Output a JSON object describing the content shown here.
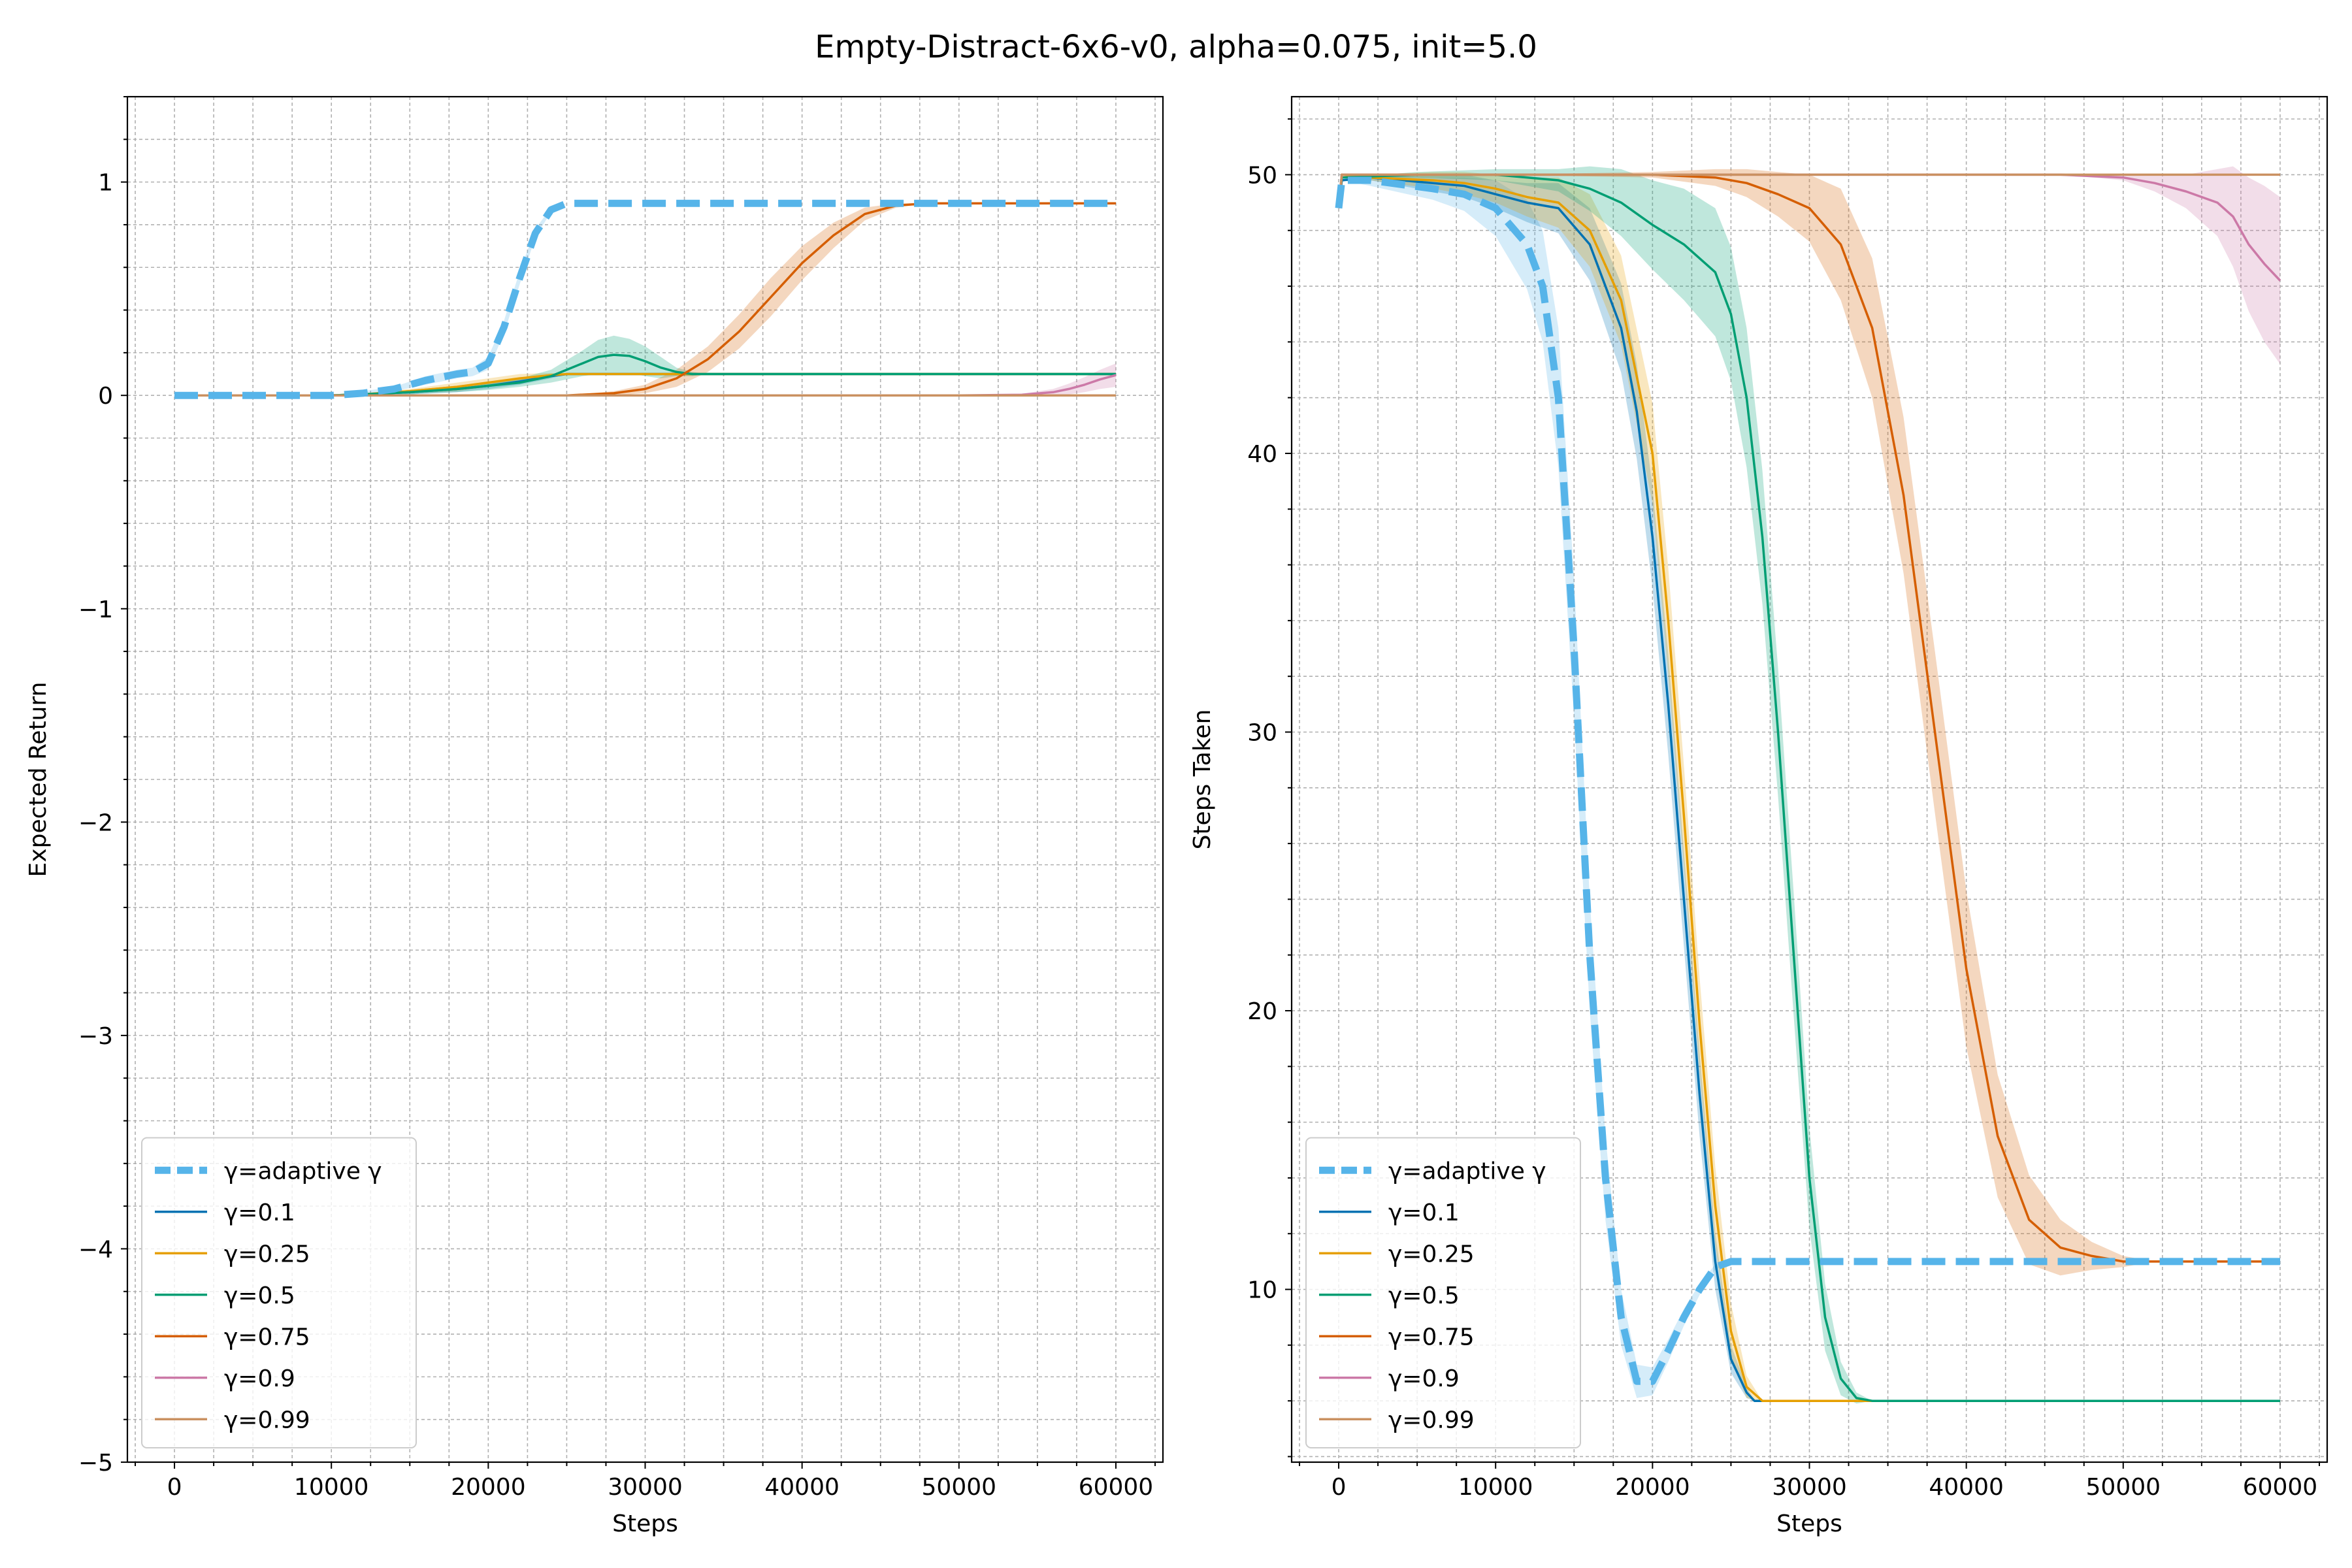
{
  "figure": {
    "title": "Empty-Distract-6x6-v0, alpha=0.075, init=5.0"
  },
  "chart_data": [
    {
      "type": "line",
      "xlabel": "Steps",
      "ylabel": "Expected Return",
      "xlim": [
        -3000,
        63000
      ],
      "ylim": [
        -5,
        1.4
      ],
      "xticks": [
        0,
        10000,
        20000,
        30000,
        40000,
        50000,
        60000
      ],
      "yticks": [
        -5,
        -4,
        -3,
        -2,
        -1,
        0,
        1
      ],
      "grid": true,
      "minor_grid": true,
      "legend_position": "lower-left",
      "series": [
        {
          "name": "γ=adaptive γ",
          "color": "#56B4E9",
          "dashed": true,
          "x": [
            0,
            10000,
            12000,
            14000,
            16000,
            18000,
            19000,
            20000,
            21000,
            22000,
            23000,
            24000,
            25000,
            26000,
            30000,
            40000,
            50000,
            60000
          ],
          "y": [
            0,
            0,
            0.01,
            0.03,
            0.07,
            0.1,
            0.11,
            0.15,
            0.32,
            0.55,
            0.76,
            0.87,
            0.9,
            0.9,
            0.9,
            0.9,
            0.9,
            0.9
          ],
          "band": [
            0,
            0,
            0.01,
            0.01,
            0.02,
            0.02,
            0.02,
            0.03,
            0.03,
            0.03,
            0.02,
            0.01,
            0,
            0,
            0,
            0,
            0,
            0
          ]
        },
        {
          "name": "γ=0.1",
          "color": "#0072B2",
          "x": [
            0,
            10000,
            12000,
            15000,
            18000,
            20000,
            22000,
            24000,
            25000,
            30000,
            40000,
            50000,
            60000
          ],
          "y": [
            0,
            0,
            0.005,
            0.015,
            0.03,
            0.045,
            0.065,
            0.09,
            0.1,
            0.1,
            0.1,
            0.1,
            0.1
          ],
          "band": [
            0,
            0,
            0.005,
            0.01,
            0.015,
            0.015,
            0.015,
            0.01,
            0,
            0,
            0,
            0,
            0
          ]
        },
        {
          "name": "γ=0.25",
          "color": "#E69F00",
          "x": [
            0,
            10000,
            12000,
            15000,
            18000,
            20000,
            22000,
            24000,
            25000,
            30000,
            40000,
            50000,
            60000
          ],
          "y": [
            0,
            0,
            0.005,
            0.02,
            0.04,
            0.06,
            0.08,
            0.095,
            0.1,
            0.1,
            0.1,
            0.1,
            0.1
          ],
          "band": [
            0,
            0,
            0.005,
            0.01,
            0.02,
            0.02,
            0.02,
            0.01,
            0,
            0,
            0,
            0,
            0
          ]
        },
        {
          "name": "γ=0.5",
          "color": "#009E73",
          "x": [
            0,
            10000,
            12000,
            15000,
            18000,
            20000,
            22000,
            24000,
            26000,
            27000,
            28000,
            29000,
            30000,
            31000,
            32000,
            33000,
            34000,
            40000,
            50000,
            60000
          ],
          "y": [
            0,
            0,
            0.005,
            0.015,
            0.03,
            0.045,
            0.06,
            0.09,
            0.15,
            0.18,
            0.19,
            0.185,
            0.16,
            0.13,
            0.11,
            0.1,
            0.1,
            0.1,
            0.1,
            0.1
          ],
          "band": [
            0,
            0,
            0.005,
            0.01,
            0.015,
            0.02,
            0.02,
            0.03,
            0.06,
            0.08,
            0.09,
            0.08,
            0.07,
            0.05,
            0.02,
            0.01,
            0,
            0,
            0,
            0
          ]
        },
        {
          "name": "γ=0.75",
          "color": "#D55E00",
          "x": [
            0,
            25000,
            28000,
            30000,
            32000,
            34000,
            36000,
            38000,
            40000,
            42000,
            44000,
            46000,
            48000,
            50000,
            60000
          ],
          "y": [
            0,
            0,
            0.01,
            0.03,
            0.08,
            0.17,
            0.3,
            0.46,
            0.62,
            0.75,
            0.85,
            0.89,
            0.9,
            0.9,
            0.9
          ],
          "band": [
            0,
            0,
            0.01,
            0.02,
            0.04,
            0.06,
            0.08,
            0.09,
            0.08,
            0.06,
            0.03,
            0.01,
            0,
            0,
            0
          ]
        },
        {
          "name": "γ=0.9",
          "color": "#CC79A7",
          "x": [
            0,
            50000,
            54000,
            56000,
            57000,
            58000,
            59000,
            60000
          ],
          "y": [
            0,
            0,
            0.003,
            0.015,
            0.03,
            0.05,
            0.075,
            0.095
          ],
          "band": [
            0,
            0,
            0.005,
            0.015,
            0.025,
            0.035,
            0.045,
            0.055
          ]
        },
        {
          "name": "γ=0.99",
          "color": "#CA9161",
          "x": [
            0,
            60000
          ],
          "y": [
            0,
            0
          ],
          "band": [
            0,
            0
          ]
        }
      ]
    },
    {
      "type": "line",
      "xlabel": "Steps",
      "ylabel": "Steps Taken",
      "xlim": [
        -3000,
        63000
      ],
      "ylim": [
        3.8,
        52.8
      ],
      "xticks": [
        0,
        10000,
        20000,
        30000,
        40000,
        50000,
        60000
      ],
      "yticks": [
        10,
        20,
        30,
        40,
        50
      ],
      "grid": true,
      "minor_grid": true,
      "legend_position": "lower-left",
      "series": [
        {
          "name": "γ=adaptive γ",
          "color": "#56B4E9",
          "dashed": true,
          "x": [
            0,
            200,
            2000,
            6000,
            8000,
            10000,
            12000,
            13000,
            14000,
            15000,
            16000,
            17000,
            18000,
            19000,
            20000,
            21000,
            22000,
            23000,
            24000,
            25000,
            30000,
            40000,
            50000,
            60000
          ],
          "y": [
            48.8,
            49.8,
            49.8,
            49.5,
            49.3,
            48.8,
            47.5,
            46.0,
            42.0,
            33.0,
            22.0,
            14.0,
            9.0,
            6.7,
            6.7,
            7.8,
            9.0,
            10.0,
            10.8,
            11.0,
            11.0,
            11.0,
            11.0,
            11.0
          ],
          "band": [
            0,
            0,
            0.2,
            0.4,
            0.6,
            1.0,
            1.6,
            2.0,
            2.5,
            2.5,
            2.0,
            1.5,
            1.0,
            0.6,
            0.5,
            0.4,
            0.3,
            0.2,
            0.1,
            0,
            0,
            0,
            0,
            0
          ]
        },
        {
          "name": "γ=0.1",
          "color": "#0072B2",
          "x": [
            0,
            200,
            2000,
            6000,
            8000,
            10000,
            12000,
            14000,
            16000,
            18000,
            19000,
            20000,
            21000,
            22000,
            23000,
            24000,
            25000,
            26000,
            26500,
            27000,
            40000,
            50000,
            60000
          ],
          "y": [
            48.8,
            49.8,
            49.9,
            49.7,
            49.6,
            49.3,
            49.0,
            48.8,
            47.5,
            44.5,
            41.5,
            37.0,
            31.0,
            24.0,
            17.0,
            11.0,
            7.5,
            6.3,
            6.0,
            6.0,
            6.0,
            6.0,
            6.0
          ],
          "band": [
            0,
            0,
            0.1,
            0.3,
            0.4,
            0.5,
            0.7,
            0.9,
            1.3,
            1.6,
            1.7,
            1.8,
            1.8,
            1.7,
            1.5,
            1.0,
            0.5,
            0.2,
            0,
            0,
            0,
            0,
            0
          ]
        },
        {
          "name": "γ=0.25",
          "color": "#E69F00",
          "x": [
            0,
            200,
            2000,
            6000,
            8000,
            10000,
            12000,
            14000,
            16000,
            18000,
            20000,
            21000,
            22000,
            23000,
            24000,
            25000,
            26000,
            27000,
            28000,
            40000,
            50000,
            60000
          ],
          "y": [
            48.8,
            50.0,
            49.9,
            49.8,
            49.7,
            49.5,
            49.2,
            49.0,
            48.0,
            45.5,
            40.0,
            34.0,
            27.0,
            19.5,
            13.0,
            8.5,
            6.5,
            6.0,
            6.0,
            6.0,
            6.0,
            6.0
          ],
          "band": [
            0,
            0,
            0.1,
            0.3,
            0.4,
            0.5,
            0.7,
            0.9,
            1.3,
            1.6,
            1.8,
            1.9,
            1.8,
            1.7,
            1.4,
            1.0,
            0.4,
            0,
            0,
            0,
            0,
            0
          ]
        },
        {
          "name": "γ=0.5",
          "color": "#009E73",
          "x": [
            0,
            200,
            5000,
            10000,
            14000,
            16000,
            18000,
            20000,
            22000,
            24000,
            25000,
            26000,
            27000,
            28000,
            29000,
            30000,
            31000,
            32000,
            33000,
            34000,
            40000,
            50000,
            60000
          ],
          "y": [
            48.8,
            49.9,
            50.0,
            50.0,
            49.8,
            49.5,
            49.0,
            48.2,
            47.5,
            46.5,
            45.0,
            42.0,
            37.0,
            30.0,
            22.0,
            14.0,
            9.0,
            6.8,
            6.1,
            6.0,
            6.0,
            6.0,
            6.0
          ],
          "band": [
            0,
            0,
            0.1,
            0.2,
            0.4,
            0.8,
            1.2,
            1.6,
            2.0,
            2.3,
            2.4,
            2.5,
            2.4,
            2.3,
            2.2,
            1.8,
            1.2,
            0.6,
            0.2,
            0,
            0,
            0,
            0
          ]
        },
        {
          "name": "γ=0.75",
          "color": "#D55E00",
          "x": [
            0,
            200,
            10000,
            20000,
            24000,
            26000,
            28000,
            30000,
            32000,
            34000,
            36000,
            38000,
            40000,
            42000,
            44000,
            46000,
            48000,
            50000,
            52000,
            60000
          ],
          "y": [
            48.8,
            50.0,
            50.0,
            50.0,
            49.9,
            49.7,
            49.3,
            48.8,
            47.5,
            44.5,
            38.5,
            30.0,
            21.5,
            15.5,
            12.5,
            11.5,
            11.2,
            11.0,
            11.0,
            11.0
          ],
          "band": [
            0,
            0,
            0,
            0.1,
            0.3,
            0.5,
            0.8,
            1.2,
            2.0,
            2.5,
            2.8,
            2.9,
            2.8,
            2.2,
            1.6,
            1.0,
            0.5,
            0.2,
            0,
            0
          ]
        },
        {
          "name": "γ=0.9",
          "color": "#CC79A7",
          "x": [
            0,
            200,
            10000,
            30000,
            46000,
            50000,
            52000,
            54000,
            56000,
            57000,
            58000,
            59000,
            60000
          ],
          "y": [
            48.8,
            50.0,
            50.0,
            50.0,
            50.0,
            49.9,
            49.7,
            49.4,
            49.0,
            48.5,
            47.5,
            46.8,
            46.2
          ],
          "band": [
            0,
            0,
            0,
            0,
            0,
            0.1,
            0.3,
            0.6,
            1.2,
            1.8,
            2.4,
            2.8,
            3.0
          ]
        },
        {
          "name": "γ=0.99",
          "color": "#CA9161",
          "x": [
            0,
            200,
            60000
          ],
          "y": [
            48.8,
            50.0,
            50.0
          ],
          "band": [
            0,
            0,
            0
          ]
        }
      ]
    }
  ]
}
